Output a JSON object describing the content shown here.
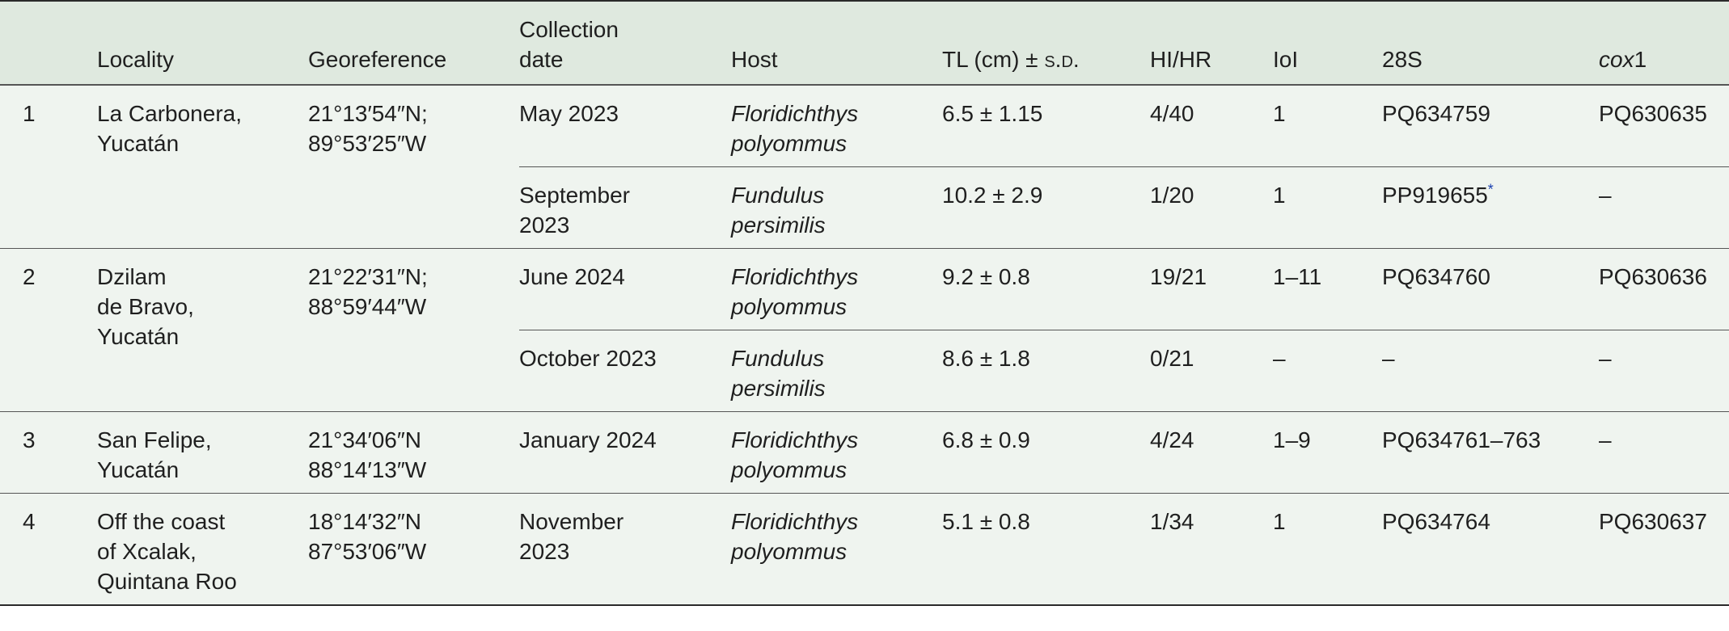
{
  "headers": {
    "num": "",
    "locality": "Locality",
    "georef": "Georeference",
    "collection_date_l1": "Collection",
    "collection_date_l2": "date",
    "host": "Host",
    "tl_pre": "TL (cm) ± ",
    "tl_sd": "s.d.",
    "hihr": "HI/HR",
    "ioi": "IoI",
    "s28": "28S",
    "cox_ital": "cox",
    "cox_num": "1"
  },
  "rows": [
    {
      "num": "1",
      "locality": [
        "La Carbonera,",
        "Yucatán"
      ],
      "georef": [
        "21°13′54″N;",
        "89°53′25″W"
      ],
      "samples": [
        {
          "date": [
            "May 2023"
          ],
          "host": [
            "Floridichthys",
            "polyommus"
          ],
          "tl": "6.5 ± 1.15",
          "hihr": "4/40",
          "ioi": "1",
          "s28": "PQ634759",
          "s28_mark": "",
          "cox1": "PQ630635"
        },
        {
          "date": [
            "September",
            "2023"
          ],
          "host": [
            "Fundulus",
            "persimilis"
          ],
          "tl": "10.2 ± 2.9",
          "hihr": "1/20",
          "ioi": "1",
          "s28": "PP919655",
          "s28_mark": "*",
          "cox1": "–"
        }
      ]
    },
    {
      "num": "2",
      "locality": [
        "Dzilam",
        "de Bravo,",
        "Yucatán"
      ],
      "georef": [
        "21°22′31″N;",
        "88°59′44″W"
      ],
      "samples": [
        {
          "date": [
            "June 2024"
          ],
          "host": [
            "Floridichthys",
            "polyommus"
          ],
          "tl": "9.2 ± 0.8",
          "hihr": "19/21",
          "ioi": "1–11",
          "s28": "PQ634760",
          "s28_mark": "",
          "cox1": "PQ630636"
        },
        {
          "date": [
            "October 2023"
          ],
          "host": [
            "Fundulus",
            "persimilis"
          ],
          "tl": "8.6 ± 1.8",
          "hihr": "0/21",
          "ioi": "–",
          "s28": "–",
          "s28_mark": "",
          "cox1": "–"
        }
      ]
    },
    {
      "num": "3",
      "locality": [
        "San Felipe,",
        "Yucatán"
      ],
      "georef": [
        "21°34′06″N",
        "88°14′13″W"
      ],
      "samples": [
        {
          "date": [
            "January 2024"
          ],
          "host": [
            "Floridichthys",
            "polyommus"
          ],
          "tl": "6.8 ± 0.9",
          "hihr": "4/24",
          "ioi": "1–9",
          "s28": "PQ634761–763",
          "s28_mark": "",
          "cox1": "–"
        }
      ]
    },
    {
      "num": "4",
      "locality": [
        "Off the coast",
        "of Xcalak,",
        "Quintana Roo"
      ],
      "georef": [
        "18°14′32″N",
        "87°53′06″W"
      ],
      "samples": [
        {
          "date": [
            "November",
            "2023"
          ],
          "host": [
            "Floridichthys",
            "polyommus"
          ],
          "tl": "5.1 ± 0.8",
          "hihr": "1/34",
          "ioi": "1",
          "s28": "PQ634764",
          "s28_mark": "",
          "cox1": "PQ630637"
        }
      ]
    }
  ]
}
